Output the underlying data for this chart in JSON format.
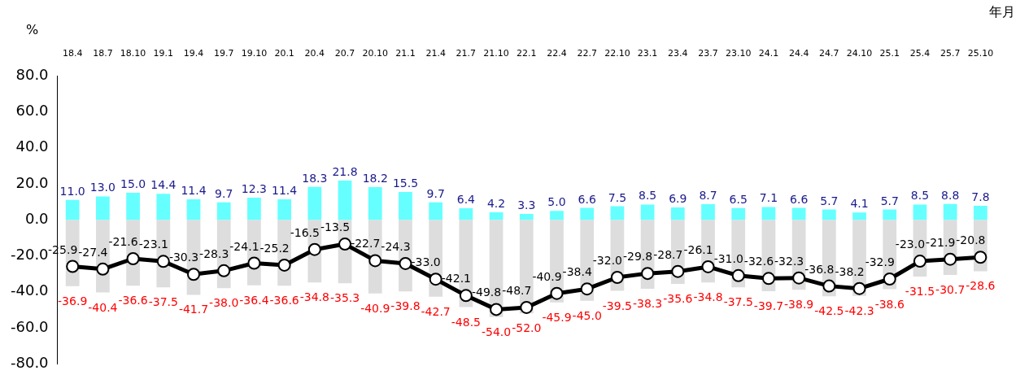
{
  "chart_data": {
    "type": "bar",
    "ylabel": "%",
    "xlabel": "年月",
    "categories": [
      "18.4",
      "18.7",
      "18.10",
      "19.1",
      "19.4",
      "19.7",
      "19.10",
      "20.1",
      "20.4",
      "20.7",
      "20.10",
      "21.1",
      "21.4",
      "21.7",
      "21.10",
      "22.1",
      "22.4",
      "22.7",
      "22.10",
      "23.1",
      "23.4",
      "23.7",
      "23.10",
      "24.1",
      "24.4",
      "24.7",
      "24.10",
      "25.1",
      "25.4",
      "25.7",
      "25.10"
    ],
    "ylim": [
      -80,
      80
    ],
    "yticks": [
      {
        "value": -80,
        "label": "-80.0"
      },
      {
        "value": -60,
        "label": "-60.0"
      },
      {
        "value": -40,
        "label": "-40.0"
      },
      {
        "value": -20,
        "label": "-20.0"
      },
      {
        "value": 0,
        "label": "0.0"
      },
      {
        "value": 20,
        "label": "20.0"
      },
      {
        "value": 40,
        "label": "40.0"
      },
      {
        "value": 60,
        "label": "60.0"
      },
      {
        "value": 80,
        "label": "80.0"
      }
    ],
    "grid": false,
    "legend": false,
    "stacked": true,
    "series": [
      {
        "color": "#66ffff",
        "values": [
          11.0,
          13.0,
          15.0,
          14.4,
          11.4,
          9.7,
          12.3,
          11.4,
          18.3,
          21.8,
          18.2,
          15.5,
          9.7,
          6.4,
          4.2,
          3.3,
          5.0,
          6.6,
          7.5,
          8.5,
          6.9,
          8.7,
          6.5,
          7.1,
          6.6,
          5.7,
          4.1,
          5.7,
          8.5,
          8.8,
          7.8
        ],
        "value_labels": [
          "11.0",
          "13.0",
          "15.0",
          "14.4",
          "11.4",
          "9.7",
          "12.3",
          "11.4",
          "18.3",
          "21.8",
          "18.2",
          "15.5",
          "9.7",
          "6.4",
          "4.2",
          "3.3",
          "5.0",
          "6.6",
          "7.5",
          "8.5",
          "6.9",
          "8.7",
          "6.5",
          "7.1",
          "6.6",
          "5.7",
          "4.1",
          "5.7",
          "8.5",
          "8.8",
          "7.8"
        ]
      },
      {
        "color": "#dddddd",
        "values": [
          -36.9,
          -40.4,
          -36.6,
          -37.5,
          -41.7,
          -38.0,
          -36.4,
          -36.6,
          -34.8,
          -35.3,
          -40.9,
          -39.8,
          -42.7,
          -48.5,
          -54.0,
          -52.0,
          -45.9,
          -45.0,
          -39.5,
          -38.3,
          -35.6,
          -34.8,
          -37.5,
          -39.7,
          -38.9,
          -42.5,
          -42.3,
          -38.6,
          -31.5,
          -30.7,
          -28.6
        ],
        "value_labels": [
          "-36.9",
          "-40.4",
          "-36.6",
          "-37.5",
          "-41.7",
          "-38.0",
          "-36.4",
          "-36.6",
          "-34.8",
          "-35.3",
          "-40.9",
          "-39.8",
          "-42.7",
          "-48.5",
          "-54.0",
          "-52.0",
          "-45.9",
          "-45.0",
          "-39.5",
          "-38.3",
          "-35.6",
          "-34.8",
          "-37.5",
          "-39.7",
          "-38.9",
          "-42.5",
          "-42.3",
          "-38.6",
          "-31.5",
          "-30.7",
          "-28.6"
        ]
      },
      {
        "type": "line",
        "color": "#000000",
        "marker": "circle",
        "line_style": "solid",
        "values": [
          -25.9,
          -27.4,
          -21.6,
          -23.1,
          -30.3,
          -28.3,
          -24.1,
          -25.2,
          -16.5,
          -13.5,
          -22.7,
          -24.3,
          -33.0,
          -42.1,
          -49.8,
          -48.7,
          -40.9,
          -38.4,
          -32.0,
          -29.8,
          -28.7,
          -26.1,
          -31.0,
          -32.6,
          -32.3,
          -36.8,
          -38.2,
          -32.9,
          -23.0,
          -21.9,
          -20.8
        ],
        "value_labels": [
          "-25.9",
          "-27.4",
          "-21.6",
          "-23.1",
          "-30.3",
          "-28.3",
          "-24.1",
          "-25.2",
          "-16.5",
          "-13.5",
          "-22.7",
          "-24.3",
          "-33.0",
          "-42.1",
          "-49.8",
          "-48.7",
          "-40.9",
          "-38.4",
          "-32.0",
          "-29.8",
          "-28.7",
          "-26.1",
          "-31.0",
          "-32.6",
          "-32.3",
          "-36.8",
          "-38.2",
          "-32.9",
          "-23.0",
          "-21.9",
          "-20.8"
        ]
      }
    ]
  }
}
